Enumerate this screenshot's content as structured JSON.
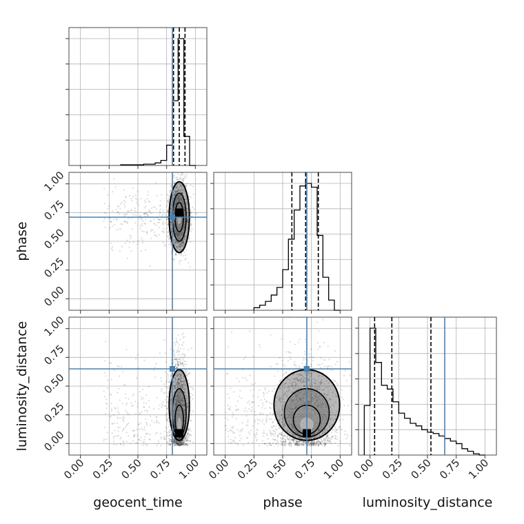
{
  "chart_data": {
    "type": "corner",
    "parameters": [
      "geocent_time",
      "phase",
      "luminosity_distance"
    ],
    "tick_labels": [
      "0.00",
      "0.25",
      "0.50",
      "0.75",
      "1.00"
    ],
    "range": [
      -0.1,
      1.1
    ],
    "grid": true,
    "truths": {
      "geocent_time": 0.8,
      "phase": 0.71,
      "luminosity_distance": 0.65
    },
    "truth_color": "#4682b4",
    "quantiles": {
      "geocent_time": [
        0.81,
        0.86,
        0.91
      ],
      "phase": [
        0.58,
        0.7,
        0.81
      ],
      "luminosity_distance": [
        0.04,
        0.19,
        0.53
      ]
    },
    "histograms": {
      "geocent_time": {
        "bin_width": 0.05,
        "bins": [
          [
            0.35,
            0.005
          ],
          [
            0.4,
            0.005
          ],
          [
            0.45,
            0.005
          ],
          [
            0.5,
            0.005
          ],
          [
            0.55,
            0.01
          ],
          [
            0.6,
            0.01
          ],
          [
            0.65,
            0.02
          ],
          [
            0.7,
            0.04
          ],
          [
            0.75,
            0.16
          ],
          [
            0.8,
            0.51
          ],
          [
            0.85,
            1.0
          ],
          [
            0.9,
            0.23
          ],
          [
            0.95,
            0.0
          ]
        ]
      },
      "phase": {
        "bin_width": 0.05,
        "bins": [
          [
            0.25,
            0.02
          ],
          [
            0.3,
            0.04
          ],
          [
            0.35,
            0.07
          ],
          [
            0.4,
            0.12
          ],
          [
            0.45,
            0.18
          ],
          [
            0.5,
            0.32
          ],
          [
            0.55,
            0.56
          ],
          [
            0.6,
            0.79
          ],
          [
            0.65,
            0.98
          ],
          [
            0.7,
            1.0
          ],
          [
            0.75,
            0.97
          ],
          [
            0.8,
            0.59
          ],
          [
            0.85,
            0.26
          ],
          [
            0.9,
            0.08
          ],
          [
            0.95,
            0.0
          ]
        ]
      },
      "luminosity_distance": {
        "bin_width": 0.05,
        "bins": [
          [
            -0.05,
            0.39
          ],
          [
            0.0,
            1.0
          ],
          [
            0.05,
            0.73
          ],
          [
            0.1,
            0.55
          ],
          [
            0.15,
            0.52
          ],
          [
            0.2,
            0.42
          ],
          [
            0.25,
            0.33
          ],
          [
            0.3,
            0.29
          ],
          [
            0.35,
            0.25
          ],
          [
            0.4,
            0.23
          ],
          [
            0.45,
            0.2
          ],
          [
            0.5,
            0.18
          ],
          [
            0.55,
            0.17
          ],
          [
            0.6,
            0.15
          ],
          [
            0.65,
            0.13
          ],
          [
            0.7,
            0.11
          ],
          [
            0.75,
            0.09
          ],
          [
            0.8,
            0.05
          ],
          [
            0.85,
            0.03
          ],
          [
            0.9,
            0.01
          ],
          [
            0.95,
            0.0
          ]
        ]
      }
    },
    "scatter_2d": {
      "phase|geocent_time": {
        "center": [
          0.86,
          0.71
        ],
        "sigma": [
          0.04,
          0.14
        ],
        "tail_x_min": 0.2,
        "n": 2200
      },
      "luminosity_distance|geocent_time": {
        "center": [
          0.86,
          0.12
        ],
        "sigma": [
          0.04,
          0.28
        ],
        "tail_x_min": 0.2,
        "n": 2200
      },
      "luminosity_distance|phase": {
        "center": [
          0.71,
          0.12
        ],
        "sigma": [
          0.13,
          0.28
        ],
        "tail_x_min": 0.0,
        "n": 2200
      }
    }
  }
}
